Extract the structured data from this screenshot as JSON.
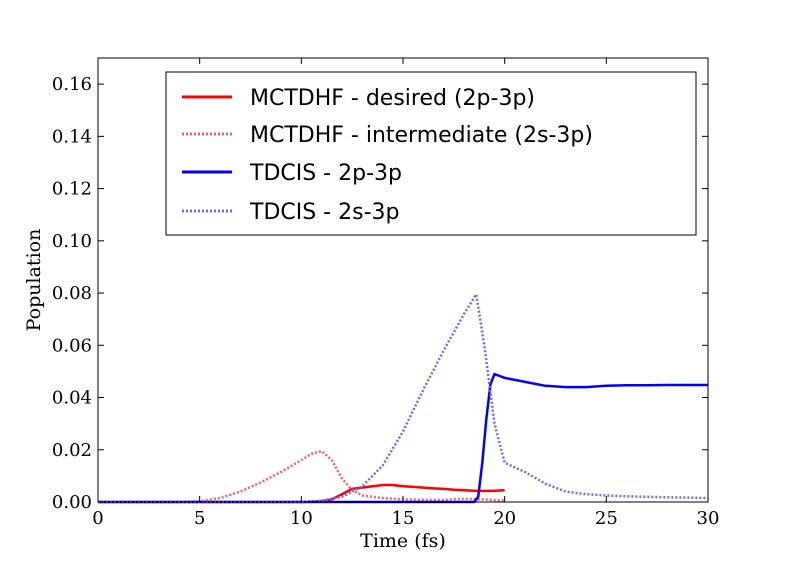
{
  "chart_data": {
    "type": "line",
    "title": "",
    "xlabel": "Time (fs)",
    "ylabel": "Population",
    "xlim": [
      0,
      30
    ],
    "ylim": [
      0,
      0.17
    ],
    "xticks": [
      0,
      5,
      10,
      15,
      20,
      25,
      30
    ],
    "xtick_labels": [
      "0",
      "5",
      "10",
      "15",
      "20",
      "25",
      "30"
    ],
    "yticks": [
      0,
      0.02,
      0.04,
      0.06,
      0.08,
      0.1,
      0.12,
      0.14,
      0.16
    ],
    "ytick_labels": [
      "0.00",
      "0.02",
      "0.04",
      "0.06",
      "0.08",
      "0.10",
      "0.12",
      "0.14",
      "0.16"
    ],
    "grid": false,
    "legend_position": "top-center",
    "series": [
      {
        "name": "MCTDHF - desired (2p-3p)",
        "color": "#ff0000",
        "style": "solid",
        "x": [
          0,
          10,
          11,
          11.5,
          12,
          12.5,
          13,
          13.5,
          14,
          14.5,
          15,
          15.5,
          16,
          16.5,
          17,
          17.5,
          18,
          18.5,
          19,
          19.5,
          20
        ],
        "y": [
          0,
          0,
          0.0003,
          0.001,
          0.003,
          0.005,
          0.0055,
          0.006,
          0.0065,
          0.0065,
          0.006,
          0.0058,
          0.0055,
          0.0052,
          0.005,
          0.0047,
          0.0045,
          0.0043,
          0.0042,
          0.0043,
          0.0045
        ]
      },
      {
        "name": "MCTDHF - intermediate (2s-3p)",
        "color": "#f06060",
        "style": "dotted",
        "x": [
          0,
          4,
          5,
          6,
          7,
          8,
          9,
          10,
          10.5,
          11,
          11.5,
          12,
          12.5,
          13,
          14,
          15,
          16,
          17,
          18,
          19,
          20
        ],
        "y": [
          0,
          0,
          0.0003,
          0.0015,
          0.004,
          0.0075,
          0.0115,
          0.016,
          0.0185,
          0.0195,
          0.016,
          0.009,
          0.0045,
          0.0025,
          0.0015,
          0.001,
          0.0008,
          0.0008,
          0.0012,
          0.001,
          0.0005
        ]
      },
      {
        "name": "TDCIS - 2p-3p",
        "color": "#0000ff",
        "style": "solid",
        "x": [
          0,
          18.5,
          18.7,
          18.9,
          19.1,
          19.3,
          19.5,
          20,
          21,
          22,
          23,
          24,
          25,
          26,
          27,
          28,
          29,
          30
        ],
        "y": [
          0,
          0,
          0.002,
          0.015,
          0.032,
          0.045,
          0.049,
          0.0475,
          0.046,
          0.0445,
          0.044,
          0.044,
          0.0445,
          0.0447,
          0.0447,
          0.0448,
          0.0448,
          0.0448
        ]
      },
      {
        "name": "TDCIS - 2s-3p",
        "color": "#6b6bf2",
        "style": "dotted",
        "x": [
          0,
          10,
          11,
          12,
          13,
          14,
          15,
          16,
          17,
          18,
          18.6,
          19,
          19.5,
          20,
          21,
          22,
          23,
          24,
          25,
          26,
          27,
          28,
          29,
          30
        ],
        "y": [
          0,
          0,
          0.0005,
          0.002,
          0.006,
          0.014,
          0.027,
          0.043,
          0.058,
          0.072,
          0.0795,
          0.06,
          0.03,
          0.015,
          0.0115,
          0.007,
          0.004,
          0.003,
          0.0025,
          0.0022,
          0.002,
          0.0018,
          0.0017,
          0.0015
        ]
      }
    ]
  }
}
